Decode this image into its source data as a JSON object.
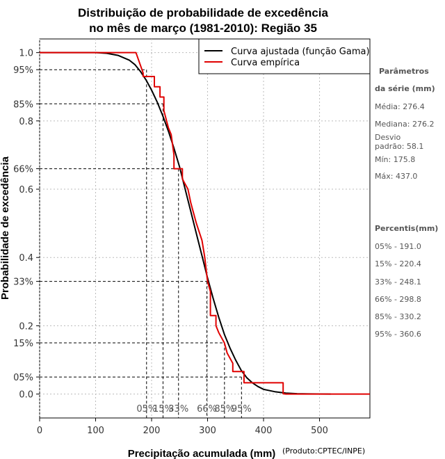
{
  "chart_data": {
    "type": "line",
    "title": [
      "Distribuição de probabilidade de excedência",
      "no mês de março (1981-2010): Região 35"
    ],
    "xlabel": "Precipitação acumulada (mm)",
    "ylabel": "Probabilidade de excedência",
    "credit": "(Produto:CPTEC/INPE)",
    "xlim": [
      0,
      590
    ],
    "ylim": [
      -0.07,
      1.04
    ],
    "x_ticks": [
      0,
      100,
      200,
      300,
      400,
      500
    ],
    "y_ticks": [
      {
        "value": 1.0,
        "label": "1.0"
      },
      {
        "value": 0.95,
        "label": "95%"
      },
      {
        "value": 0.85,
        "label": "85%"
      },
      {
        "value": 0.8,
        "label": "0.8"
      },
      {
        "value": 0.66,
        "label": "66%"
      },
      {
        "value": 0.6,
        "label": "0.6"
      },
      {
        "value": 0.4,
        "label": "0.4"
      },
      {
        "value": 0.33,
        "label": "33%"
      },
      {
        "value": 0.2,
        "label": "0.2"
      },
      {
        "value": 0.15,
        "label": "15%"
      },
      {
        "value": 0.05,
        "label": "05%"
      },
      {
        "value": 0.0,
        "label": "0.0"
      }
    ],
    "legend": [
      {
        "name": "Curva ajustada (função Gama)",
        "color": "#000000"
      },
      {
        "name": "Curva empírica",
        "color": "#e00000"
      }
    ],
    "series": [
      {
        "name": "Curva ajustada (função Gama)",
        "color": "#000000",
        "x": [
          0,
          100,
          120,
          140,
          160,
          170,
          180,
          190,
          200,
          210,
          220,
          230,
          240,
          250,
          260,
          270,
          280,
          290,
          300,
          310,
          320,
          330,
          340,
          350,
          360,
          370,
          380,
          390,
          400,
          420,
          440,
          460,
          480,
          500,
          520
        ],
        "y": [
          1.0,
          1.0,
          0.998,
          0.992,
          0.978,
          0.965,
          0.945,
          0.92,
          0.89,
          0.855,
          0.815,
          0.77,
          0.72,
          0.665,
          0.6,
          0.535,
          0.47,
          0.405,
          0.34,
          0.28,
          0.225,
          0.175,
          0.135,
          0.1,
          0.07,
          0.048,
          0.033,
          0.022,
          0.014,
          0.007,
          0.003,
          0.001,
          0.0005,
          0.0002,
          0.0
        ]
      },
      {
        "name": "Curva empírica",
        "color": "#e00000",
        "x": [
          0,
          172,
          185,
          185,
          205,
          205,
          215,
          215,
          222,
          222,
          230,
          235,
          240,
          240,
          255,
          255,
          265,
          270,
          280,
          290,
          295,
          300,
          305,
          305,
          315,
          315,
          320,
          330,
          335,
          345,
          345,
          365,
          365,
          370,
          370,
          380,
          380,
          395,
          395,
          420,
          420,
          435,
          435,
          440,
          590
        ],
        "y": [
          1.0,
          1.0,
          0.94,
          0.93,
          0.93,
          0.9,
          0.9,
          0.87,
          0.87,
          0.83,
          0.78,
          0.76,
          0.7,
          0.66,
          0.66,
          0.63,
          0.6,
          0.56,
          0.5,
          0.45,
          0.4,
          0.33,
          0.3,
          0.23,
          0.23,
          0.2,
          0.18,
          0.15,
          0.12,
          0.09,
          0.066,
          0.066,
          0.033,
          0.033,
          0.033,
          0.033,
          0.033,
          0.033,
          0.033,
          0.033,
          0.033,
          0.033,
          0.001,
          0.0,
          0.0
        ]
      }
    ],
    "percentiles": [
      {
        "label": "05%",
        "value": 191.0,
        "prob": 0.95
      },
      {
        "label": "15%",
        "value": 220.4,
        "prob": 0.85
      },
      {
        "label": "33%",
        "value": 248.1,
        "prob": 0.66
      },
      {
        "label": "66%",
        "value": 298.8,
        "prob": 0.33
      },
      {
        "label": "85%",
        "value": 330.2,
        "prob": 0.15
      },
      {
        "label": "95%",
        "value": 360.6,
        "prob": 0.05
      }
    ]
  },
  "side_panel": {
    "params_title_1": "Parâmetros",
    "params_title_2": "da série (mm)",
    "media": "Média: 276.4",
    "mediana": "Mediana: 276.2",
    "desvio_1": "Desvio",
    "desvio_2": "padrão: 58.1",
    "min": "Mín: 175.8",
    "max": "Máx: 437.0",
    "percentis_title": "Percentis(mm)",
    "percentis": [
      "05% - 191.0",
      "15% - 220.4",
      "33% - 248.1",
      "66% - 298.8",
      "85% - 330.2",
      "95% - 360.6"
    ]
  }
}
